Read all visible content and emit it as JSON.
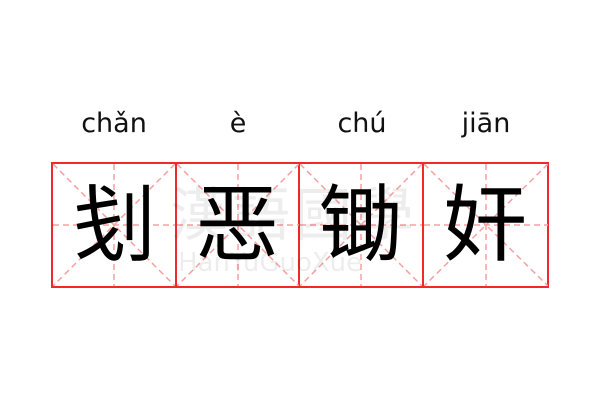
{
  "pinyin": [
    "chǎn",
    "è",
    "chú",
    "jiān"
  ],
  "characters": [
    "刬",
    "恶",
    "锄",
    "奸"
  ],
  "watermark": {
    "cn": "漢語國學",
    "en": "HanYuGuoXue"
  },
  "colors": {
    "grid": "#f02a2a",
    "guide": "#f7a0a0",
    "text": "#000000"
  }
}
